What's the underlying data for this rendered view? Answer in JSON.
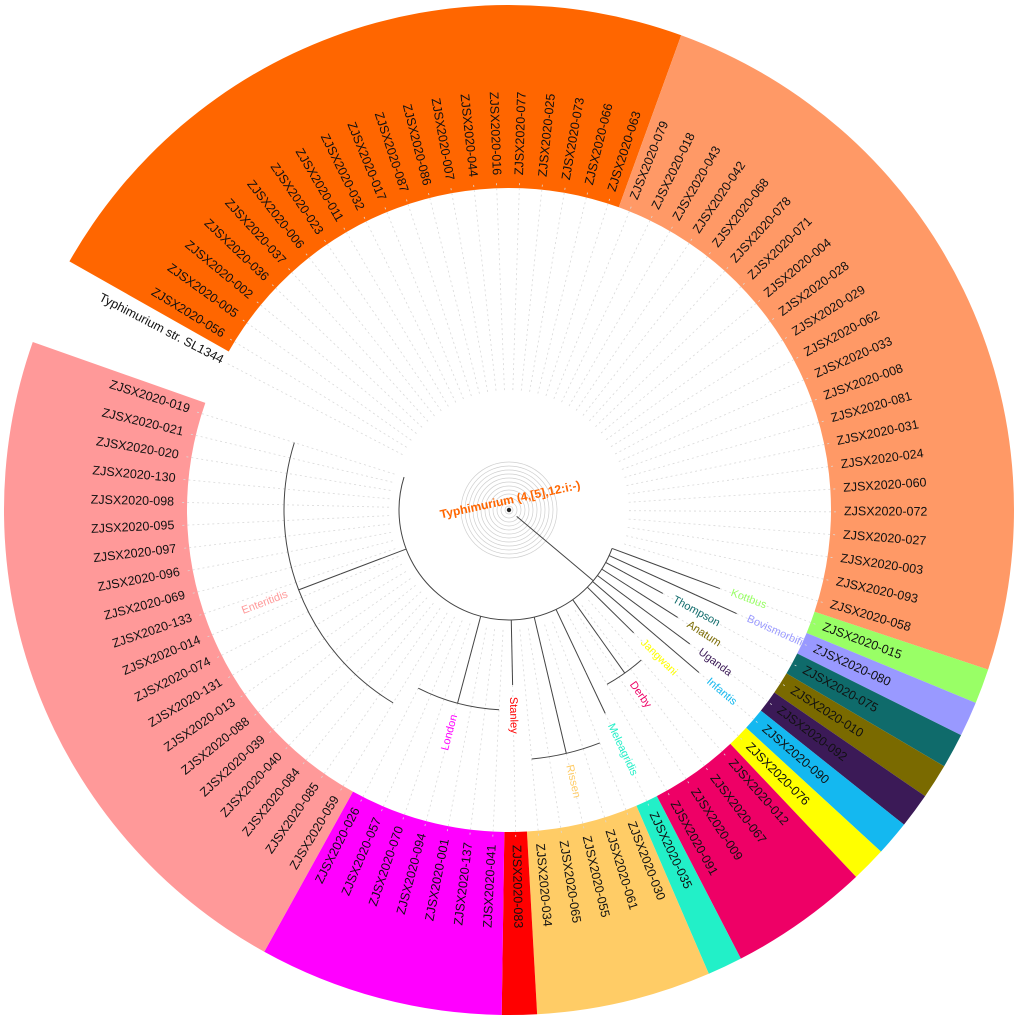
{
  "root_label": "Typhimurium (4,[5],12:i:-)",
  "reference_label": "Typhimurium str. SL1344",
  "clades": [
    {
      "name": "Typhimurium (4,[5],12:i:-)",
      "color": "#ff6600",
      "labeled": false,
      "tips": [
        "ZJSX2020-056",
        "ZJSX2020-005",
        "ZJSX2020-002",
        "ZJSX2020-036",
        "ZJSX2020-037",
        "ZJSX2020-006",
        "ZJSX2020-023",
        "ZJSX2020-011",
        "ZJSX2020-032",
        "ZJSX2020-017",
        "ZJSX2020-087",
        "ZJSX2020-086",
        "ZJSX2020-007",
        "ZJSX2020-044",
        "ZJSX2020-016",
        "ZJSX2020-077",
        "ZJSX2020-025",
        "ZJSX2020-073",
        "ZJSX2020-066",
        "ZJSX2020-063"
      ]
    },
    {
      "name": "Typhimurium (4,[5],12:i:-)",
      "color": "#ff9966",
      "labeled": false,
      "tips": [
        "ZJSX2020-079",
        "ZJSX2020-018",
        "ZJSX2020-043",
        "ZJSX2020-042",
        "ZJSX2020-068",
        "ZJSX2020-078",
        "ZJSX2020-071",
        "ZJSX2020-004",
        "ZJSX2020-028",
        "ZJSX2020-029",
        "ZJSX2020-062",
        "ZJSX2020-033",
        "ZJSX2020-008",
        "ZJSX2020-081",
        "ZJSX2020-031",
        "ZJSX2020-024",
        "ZJSX2020-060",
        "ZJSX2020-072",
        "ZJSX2020-027",
        "ZJSX2020-003",
        "ZJSX2020-093",
        "ZJSX2020-058"
      ]
    },
    {
      "name": "Kottbus",
      "color": "#99ff66",
      "labeled": true,
      "tips": [
        "ZJSX2020-015"
      ]
    },
    {
      "name": "Bovismorbificans",
      "color": "#9999ff",
      "labeled": true,
      "tips": [
        "ZJSX2020-080"
      ]
    },
    {
      "name": "Thompson",
      "color": "#0f6b6b",
      "labeled": true,
      "tips": [
        "ZJSX2020-075"
      ]
    },
    {
      "name": "Anatum",
      "color": "#7a6a00",
      "labeled": true,
      "tips": [
        "ZJSX2020-010"
      ]
    },
    {
      "name": "Uganda",
      "color": "#3b1a57",
      "labeled": true,
      "tips": [
        "ZJSX2020-092"
      ]
    },
    {
      "name": "Infantis",
      "color": "#14b8f0",
      "labeled": true,
      "tips": [
        "ZJSX2020-090"
      ]
    },
    {
      "name": "Jangwani",
      "color": "#ffff00",
      "labeled": true,
      "tips": [
        "ZJSX2020-076"
      ]
    },
    {
      "name": "Derby",
      "color": "#ee0066",
      "labeled": true,
      "tips": [
        "ZJSX2020-012",
        "ZJSX2020-067",
        "ZJSX2020-009",
        "ZJSX2020-091"
      ]
    },
    {
      "name": "Meleagridis",
      "color": "#22f0c8",
      "labeled": true,
      "tips": [
        "ZJSX2020-035"
      ]
    },
    {
      "name": "Rissen",
      "color": "#ffcc66",
      "labeled": true,
      "tips": [
        "ZJSX2020-030",
        "ZJSX2020-061",
        "ZJSX2020-055",
        "ZJSX2020-065",
        "ZJSX2020-034"
      ]
    },
    {
      "name": "Stanley",
      "color": "#ff0000",
      "labeled": true,
      "tips": [
        "ZJSX2020-083"
      ]
    },
    {
      "name": "London",
      "color": "#ff00ff",
      "labeled": true,
      "tips": [
        "ZJSX2020-041",
        "ZJSX2020-137",
        "ZJSX2020-001",
        "ZJSX2020-094",
        "ZJSX2020-070",
        "ZJSX2020-057",
        "ZJSX2020-026"
      ]
    },
    {
      "name": "Enteritidis",
      "color": "#ff9999",
      "labeled": true,
      "tips": [
        "ZJSX2020-059",
        "ZJSX2020-085",
        "ZJSX2020-084",
        "ZJSX2020-040",
        "ZJSX2020-039",
        "ZJSX2020-088",
        "ZJSX2020-013",
        "ZJSX2020-131",
        "ZJSX2020-074",
        "ZJSX2020-014",
        "ZJSX2020-133",
        "ZJSX2020-069",
        "ZJSX2020-096",
        "ZJSX2020-097",
        "ZJSX2020-095",
        "ZJSX2020-098",
        "ZJSX2020-130",
        "ZJSX2020-020",
        "ZJSX2020-021",
        "ZJSX2020-019"
      ]
    }
  ]
}
